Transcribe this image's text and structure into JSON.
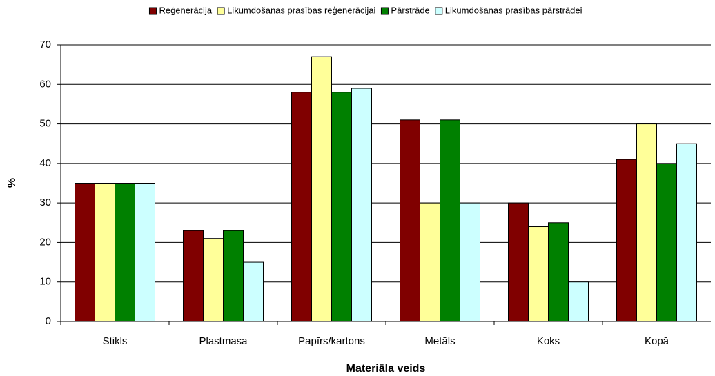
{
  "chart_data": {
    "type": "bar",
    "categories": [
      "Stikls",
      "Plastmasa",
      "Papīrs/kartons",
      "Metāls",
      "Koks",
      "Kopā"
    ],
    "series": [
      {
        "name": "Reģenerācija",
        "color": "#800000",
        "values": [
          35,
          23,
          58,
          51,
          30,
          41
        ]
      },
      {
        "name": "Likumdošanas prasības reģenerācijai",
        "color": "#ffff99",
        "values": [
          35,
          21,
          67,
          30,
          24,
          50
        ]
      },
      {
        "name": "Pārstrāde",
        "color": "#008000",
        "values": [
          35,
          23,
          58,
          51,
          25,
          40
        ]
      },
      {
        "name": "Likumdošanas prasības pārstrādei",
        "color": "#ccffff",
        "values": [
          35,
          15,
          59,
          30,
          10,
          45
        ]
      }
    ],
    "x_label": "Materiāla veids",
    "y_label": "%",
    "ylim": [
      0,
      70
    ],
    "yticks": [
      0,
      10,
      20,
      30,
      40,
      50,
      60,
      70
    ],
    "grid": true,
    "legend": "top"
  }
}
